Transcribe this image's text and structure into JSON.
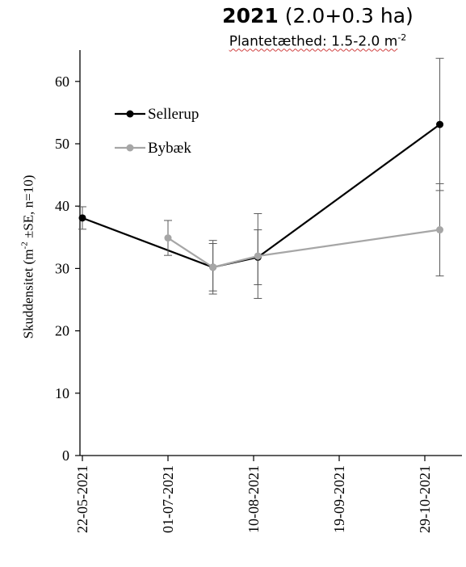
{
  "chart_data": {
    "type": "line",
    "title": "2021",
    "title_suffix": "(2.0+0.3 ha)",
    "subtitle": "Plantetæthed: 1.5-2.0 m",
    "subtitle_exp": "-2",
    "ylabel": "Skuddensitet (m",
    "ylabel_exp": "-2",
    "ylabel_rest": " ±SE,  n=10)",
    "ylim": [
      0,
      65
    ],
    "yticks": [
      0,
      10,
      20,
      30,
      40,
      50,
      60
    ],
    "xticks": [
      "22-05-2021",
      "01-07-2021",
      "10-08-2021",
      "19-09-2021",
      "29-10-2021"
    ],
    "edge_tick": "13-04-2021",
    "legend_position": "top-left",
    "series": [
      {
        "name": "Sellerup",
        "color": "#000000",
        "x": [
          "22-05-2021",
          "22-07-2021",
          "12-08-2021",
          "05-11-2021"
        ],
        "y": [
          38.1,
          30.2,
          31.8,
          53.1
        ],
        "se": [
          1.8,
          4.3,
          4.4,
          10.6
        ]
      },
      {
        "name": "Bybæk",
        "color": "#a6a6a6",
        "x": [
          "01-07-2021",
          "22-07-2021",
          "12-08-2021",
          "05-11-2021"
        ],
        "y": [
          34.9,
          30.2,
          32.0,
          36.2
        ],
        "se": [
          2.8,
          3.8,
          6.8,
          7.4
        ]
      }
    ]
  }
}
